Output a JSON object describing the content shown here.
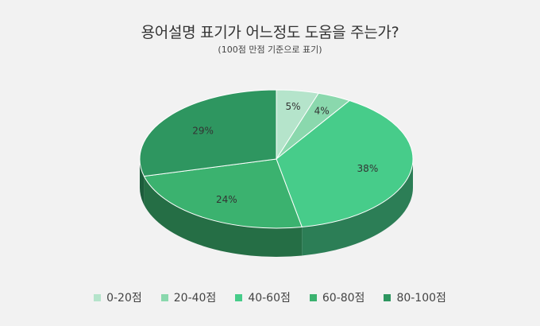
{
  "chart_data": {
    "type": "pie",
    "title": "용어설명 표기가 어느정도 도움을 주는가?",
    "subtitle": "(100점 만점 기준으로 표기)",
    "categories": [
      "0-20점",
      "20-40점",
      "40-60점",
      "60-80점",
      "80-100점"
    ],
    "values": [
      5,
      4,
      38,
      24,
      29
    ],
    "value_labels": [
      "5%",
      "4%",
      "38%",
      "24%",
      "29%"
    ],
    "colors": [
      "#b5e4cb",
      "#8ad8ad",
      "#47cc8a",
      "#3bb26f",
      "#2e9660"
    ],
    "legend_position": "bottom",
    "style": "3d"
  }
}
